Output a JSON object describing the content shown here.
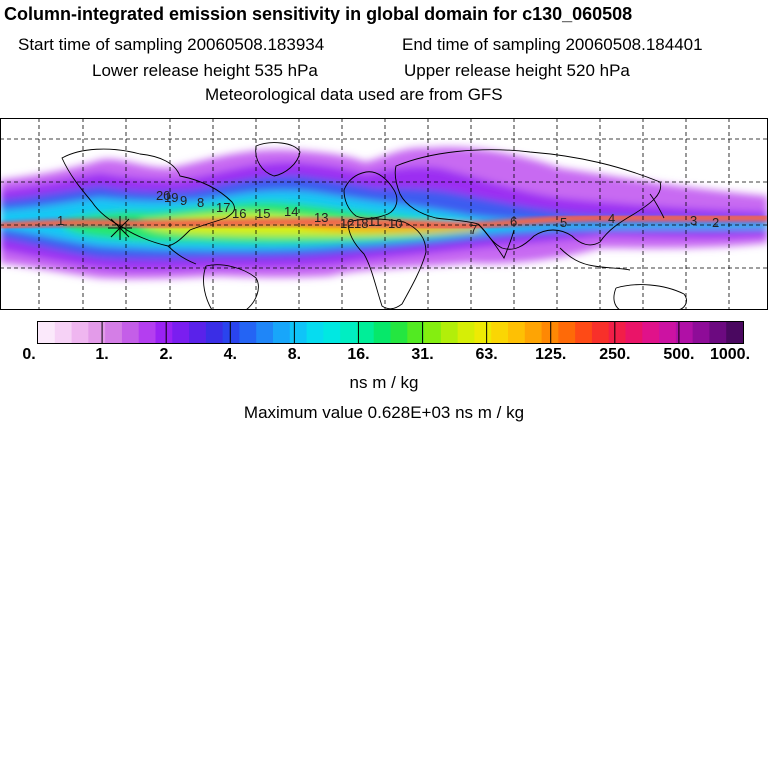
{
  "title": "Column-integrated emission sensitivity in global domain for c130_060508",
  "header": {
    "start_time": "Start time of sampling 20060508.183934",
    "end_time": "End time of sampling 20060508.184401",
    "lower_height": "Lower release height  535 hPa",
    "upper_height": "Upper release height  520 hPa",
    "met_data": "Meteorological data used are from GFS"
  },
  "colorbar": {
    "labels": [
      "0.",
      "1.",
      "2.",
      "4.",
      "8.",
      "16.",
      "31.",
      "63.",
      "125.",
      "250.",
      "500.",
      "1000."
    ],
    "colors": [
      "#fbe9fb",
      "#f6d2f6",
      "#efb6f0",
      "#e39be9",
      "#d47ee6",
      "#c45ee8",
      "#b43ef0",
      "#9a22f4",
      "#7a1ef0",
      "#5a22ea",
      "#3a2ee6",
      "#2a44ee",
      "#2464f4",
      "#1f86f8",
      "#18a6fa",
      "#0fc4f8",
      "#06dcf0",
      "#00e8e2",
      "#00eec2",
      "#00ee98",
      "#06e86a",
      "#24e640",
      "#52ea22",
      "#84ee10",
      "#b2ee0a",
      "#d6ee06",
      "#eeea04",
      "#fad604",
      "#fec004",
      "#fea404",
      "#fe8804",
      "#fe6a08",
      "#fe4a16",
      "#f8302a",
      "#f21e48",
      "#ea1468",
      "#e0128a",
      "#cc12a2",
      "#b010a6",
      "#8e0c98",
      "#6c0a80",
      "#4a0860"
    ],
    "units": "ns m / kg"
  },
  "max_value": "Maximum value  0.628E+03 ns m / kg",
  "map": {
    "trajectory_labels": [
      "1",
      "2",
      "3",
      "4",
      "5",
      "6",
      "7",
      "8",
      "9",
      "10",
      "11",
      "12",
      "13",
      "14",
      "15",
      "16",
      "17",
      "18",
      "19",
      "20"
    ],
    "release_marker": "star-marker",
    "colors": {
      "outer": "#c86af2",
      "violet": "#9c2ef2",
      "blue": "#3c5cf0",
      "cyan": "#12c8f4",
      "green": "#28e66e",
      "yellow": "#d8ee0c",
      "orange": "#fea404",
      "red": "#f23c1e",
      "pink": "#e0168c"
    }
  }
}
